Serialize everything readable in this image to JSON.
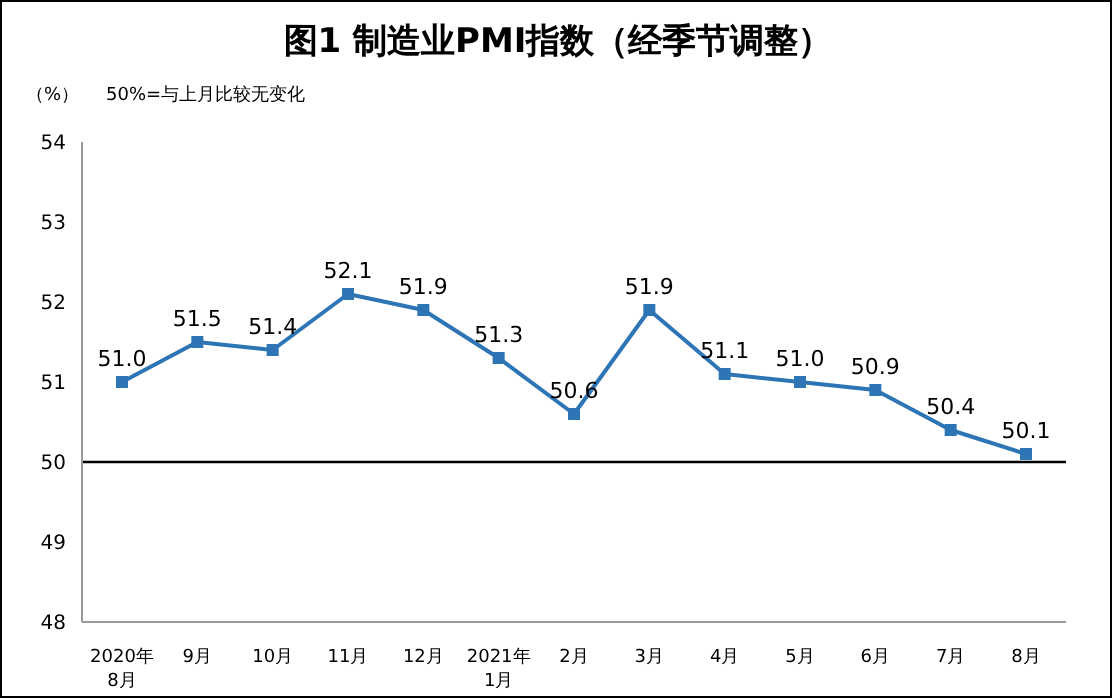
{
  "chart_data": {
    "type": "line",
    "title": "图1 制造业PMI指数（经季节调整）",
    "ylabel": "（%）",
    "annotations": [
      "50%=与上月比较无变化"
    ],
    "categories": [
      "2020年\n8月",
      "9月",
      "10月",
      "11月",
      "12月",
      "2021年\n1月",
      "2月",
      "3月",
      "4月",
      "5月",
      "6月",
      "7月",
      "8月"
    ],
    "series": [
      {
        "color": "#2e75b6",
        "values": [
          51.0,
          51.5,
          51.4,
          52.1,
          51.9,
          51.3,
          50.6,
          51.9,
          51.1,
          51.0,
          50.9,
          50.4,
          50.1
        ],
        "value_labels": [
          "51.0",
          "51.5",
          "51.4",
          "52.1",
          "51.9",
          "51.3",
          "50.6",
          "51.9",
          "51.1",
          "51.0",
          "50.9",
          "50.4",
          "50.1"
        ]
      }
    ],
    "ylim": [
      48,
      54
    ],
    "yticks": [
      48,
      49,
      50,
      51,
      52,
      53,
      54
    ],
    "ref_lines": [
      {
        "axis": "y",
        "value": 50,
        "color": "#000000"
      }
    ],
    "marker": "square",
    "legend": false,
    "grid": false
  }
}
